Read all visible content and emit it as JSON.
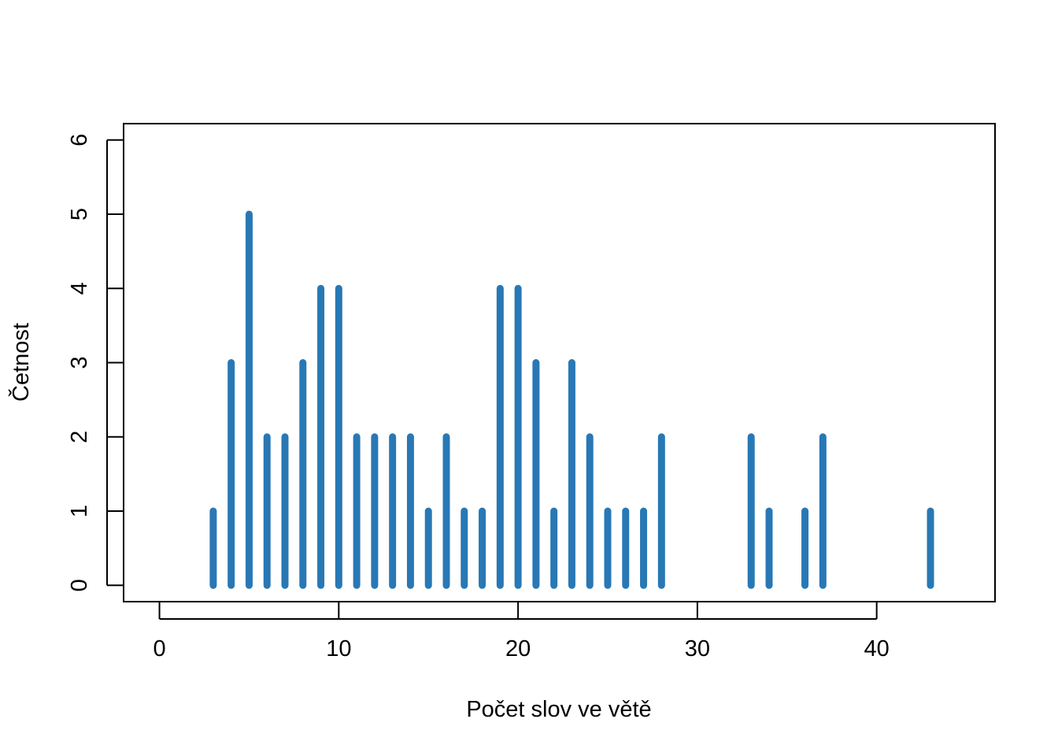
{
  "chart_data": {
    "type": "bar",
    "style": "vertical-lines",
    "xlabel": "Počet slov ve větě",
    "ylabel": "Četnost",
    "xlim": [
      -2,
      46.6
    ],
    "ylim": [
      -0.22,
      6.22
    ],
    "x_ticks": [
      0,
      10,
      20,
      30,
      40
    ],
    "y_ticks": [
      0,
      1,
      2,
      3,
      4,
      5,
      6
    ],
    "x_tick_labels": [
      "0",
      "10",
      "20",
      "30",
      "40"
    ],
    "y_tick_labels": [
      "0",
      "1",
      "2",
      "3",
      "4",
      "5",
      "6"
    ],
    "grid": false,
    "legend": "none",
    "bar_color": "#2878b5",
    "x": [
      3,
      4,
      5,
      6,
      7,
      8,
      9,
      10,
      11,
      12,
      13,
      14,
      15,
      16,
      17,
      18,
      19,
      20,
      21,
      22,
      23,
      24,
      25,
      26,
      27,
      28,
      33,
      34,
      36,
      37,
      43
    ],
    "values": [
      1,
      3,
      5,
      2,
      2,
      3,
      4,
      4,
      2,
      2,
      2,
      2,
      1,
      2,
      1,
      1,
      4,
      4,
      3,
      1,
      3,
      2,
      1,
      1,
      1,
      2,
      2,
      1,
      1,
      2,
      1
    ]
  }
}
